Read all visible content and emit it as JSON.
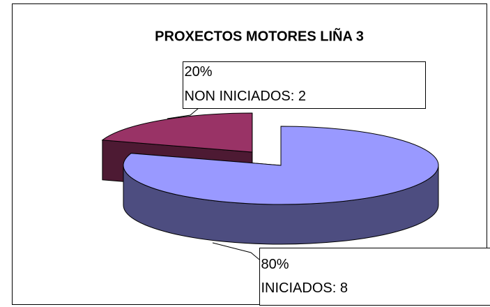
{
  "chart_data": {
    "type": "pie3d",
    "title": "PROXECTOS MOTORES LIÑA 3",
    "categories": [
      "INICIADOS: 8",
      "NON INICIADOS: 2"
    ],
    "values": [
      80,
      20
    ],
    "value_labels": [
      "80%",
      "20%"
    ],
    "colors": [
      "#9999ff",
      "#993366"
    ]
  }
}
